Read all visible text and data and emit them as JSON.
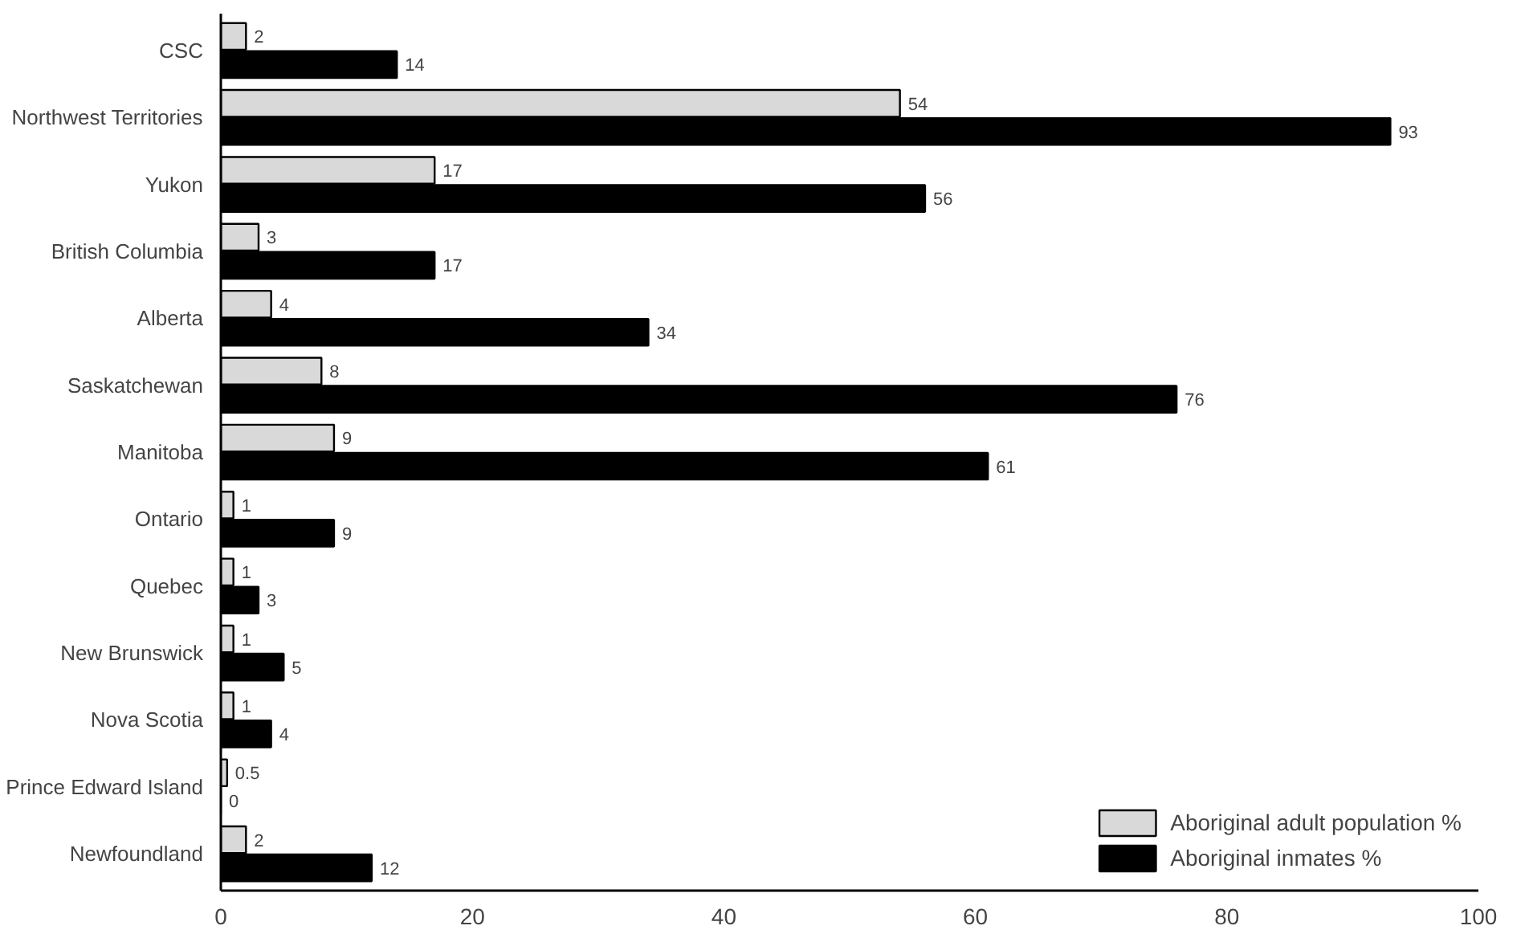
{
  "chart_data": {
    "type": "bar",
    "orientation": "horizontal",
    "categories": [
      "CSC",
      "Northwest Territories",
      "Yukon",
      "British Columbia",
      "Alberta",
      "Saskatchewan",
      "Manitoba",
      "Ontario",
      "Quebec",
      "New Brunswick",
      "Nova Scotia",
      "Prince Edward Island",
      "Newfoundland"
    ],
    "series": [
      {
        "name": "Aboriginal adult population %",
        "color": "#d9d9d9",
        "values": [
          2,
          54,
          17,
          3,
          4,
          8,
          9,
          1,
          1,
          1,
          1,
          0.5,
          2
        ]
      },
      {
        "name": "Aboriginal inmates %",
        "color": "#000000",
        "values": [
          14,
          93,
          56,
          17,
          34,
          76,
          61,
          9,
          3,
          5,
          4,
          0,
          12
        ]
      }
    ],
    "xlim": [
      0,
      100
    ],
    "xticks": [
      0,
      20,
      40,
      60,
      80,
      100
    ],
    "grid": false,
    "legend": "bottom right",
    "data_labels": true
  }
}
